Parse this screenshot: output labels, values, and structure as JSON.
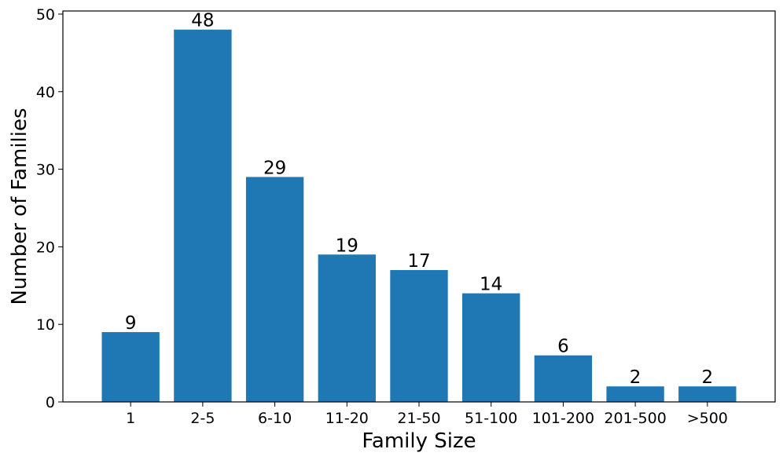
{
  "chart_data": {
    "type": "bar",
    "x_label": "Family Size",
    "y_label": "Number of Families",
    "categories": [
      "1",
      "2-5",
      "6-10",
      "11-20",
      "21-50",
      "51-100",
      "101-200",
      "201-500",
      ">500"
    ],
    "values": [
      9,
      48,
      29,
      19,
      17,
      14,
      6,
      2,
      2
    ],
    "color": "#1f77b4",
    "ylim": [
      0,
      50.4
    ],
    "yticks": [
      0,
      10,
      20,
      30,
      40,
      50
    ],
    "data_labels": true
  }
}
